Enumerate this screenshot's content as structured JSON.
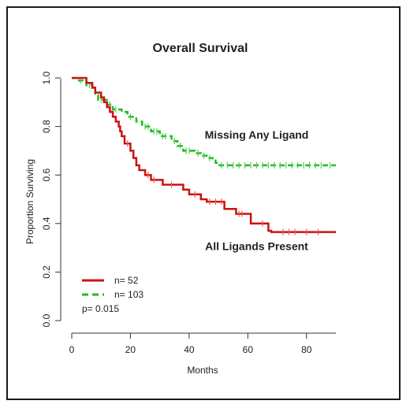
{
  "chart_data": {
    "type": "line",
    "title": "Overall Survival",
    "xlabel": "Months",
    "ylabel": "Proportion Surviving",
    "xlim": [
      0,
      90
    ],
    "ylim": [
      0,
      1
    ],
    "x_ticks": [
      0,
      20,
      40,
      60,
      80
    ],
    "y_ticks": [
      0.0,
      0.2,
      0.4,
      0.6,
      0.8,
      1.0
    ],
    "y_tick_labels": [
      "0.0",
      "0.2",
      "0.4",
      "0.6",
      "0.8",
      "1.0"
    ],
    "grid": false,
    "legend_position": "bottom-left",
    "series": [
      {
        "name": "n= 52",
        "color": "#cc1111",
        "style": "solid",
        "points": [
          [
            0,
            1.0
          ],
          [
            5,
            1.0
          ],
          [
            5,
            0.98
          ],
          [
            7,
            0.98
          ],
          [
            7,
            0.96
          ],
          [
            8,
            0.96
          ],
          [
            8,
            0.94
          ],
          [
            10,
            0.94
          ],
          [
            10,
            0.92
          ],
          [
            11,
            0.92
          ],
          [
            11,
            0.9
          ],
          [
            12,
            0.9
          ],
          [
            12,
            0.88
          ],
          [
            13,
            0.88
          ],
          [
            13,
            0.86
          ],
          [
            14,
            0.86
          ],
          [
            14,
            0.84
          ],
          [
            15,
            0.84
          ],
          [
            15,
            0.82
          ],
          [
            16,
            0.82
          ],
          [
            16,
            0.8
          ],
          [
            16.5,
            0.8
          ],
          [
            16.5,
            0.78
          ],
          [
            17,
            0.78
          ],
          [
            17,
            0.76
          ],
          [
            18,
            0.76
          ],
          [
            18,
            0.73
          ],
          [
            20,
            0.73
          ],
          [
            20,
            0.7
          ],
          [
            21,
            0.7
          ],
          [
            21,
            0.67
          ],
          [
            22,
            0.67
          ],
          [
            22,
            0.64
          ],
          [
            23,
            0.64
          ],
          [
            23,
            0.62
          ],
          [
            25,
            0.62
          ],
          [
            25,
            0.6
          ],
          [
            27,
            0.6
          ],
          [
            27,
            0.58
          ],
          [
            31,
            0.58
          ],
          [
            31,
            0.56
          ],
          [
            38,
            0.56
          ],
          [
            38,
            0.54
          ],
          [
            40,
            0.54
          ],
          [
            40,
            0.52
          ],
          [
            44,
            0.52
          ],
          [
            44,
            0.5
          ],
          [
            46,
            0.5
          ],
          [
            46,
            0.49
          ],
          [
            52,
            0.49
          ],
          [
            52,
            0.46
          ],
          [
            56,
            0.46
          ],
          [
            56,
            0.44
          ],
          [
            61,
            0.44
          ],
          [
            61,
            0.4
          ],
          [
            67,
            0.4
          ],
          [
            67,
            0.37
          ],
          [
            68,
            0.37
          ],
          [
            68,
            0.365
          ],
          [
            90,
            0.365
          ]
        ],
        "censor_x": [
          19,
          26,
          28,
          34,
          42,
          47,
          49,
          51,
          57,
          58,
          65,
          72,
          74,
          76,
          80,
          84
        ]
      },
      {
        "name": "n= 103",
        "color": "#22bb22",
        "style": "dashed",
        "points": [
          [
            0,
            1.0
          ],
          [
            2,
            1.0
          ],
          [
            2,
            0.99
          ],
          [
            5,
            0.99
          ],
          [
            5,
            0.97
          ],
          [
            7,
            0.97
          ],
          [
            7,
            0.95
          ],
          [
            8,
            0.95
          ],
          [
            8,
            0.93
          ],
          [
            9,
            0.93
          ],
          [
            9,
            0.91
          ],
          [
            12,
            0.91
          ],
          [
            12,
            0.89
          ],
          [
            14,
            0.89
          ],
          [
            14,
            0.87
          ],
          [
            17,
            0.87
          ],
          [
            17,
            0.86
          ],
          [
            19,
            0.86
          ],
          [
            19,
            0.84
          ],
          [
            22,
            0.84
          ],
          [
            22,
            0.82
          ],
          [
            24,
            0.82
          ],
          [
            24,
            0.8
          ],
          [
            27,
            0.8
          ],
          [
            27,
            0.78
          ],
          [
            30,
            0.78
          ],
          [
            30,
            0.76
          ],
          [
            34,
            0.76
          ],
          [
            34,
            0.74
          ],
          [
            36,
            0.74
          ],
          [
            36,
            0.72
          ],
          [
            38,
            0.72
          ],
          [
            38,
            0.7
          ],
          [
            42,
            0.7
          ],
          [
            42,
            0.69
          ],
          [
            44,
            0.69
          ],
          [
            44,
            0.68
          ],
          [
            46,
            0.68
          ],
          [
            46,
            0.67
          ],
          [
            48,
            0.67
          ],
          [
            48,
            0.66
          ],
          [
            49,
            0.66
          ],
          [
            49,
            0.65
          ],
          [
            50,
            0.65
          ],
          [
            50,
            0.64
          ],
          [
            90,
            0.64
          ]
        ],
        "censor_x": [
          3,
          6,
          10,
          13,
          15,
          20,
          25,
          26,
          28,
          29,
          31,
          32,
          35,
          37,
          39,
          40,
          43,
          45,
          47,
          51,
          53,
          55,
          57,
          59,
          61,
          63,
          65,
          67,
          69,
          71,
          73,
          75,
          77,
          79,
          81,
          83,
          85,
          88
        ]
      }
    ],
    "annotations": [
      {
        "text": "Missing Any Ligand",
        "x": 63,
        "y": 0.75
      },
      {
        "text": "All Ligands Present",
        "x": 63,
        "y": 0.29
      }
    ],
    "p_value_text": "p= 0.015"
  }
}
